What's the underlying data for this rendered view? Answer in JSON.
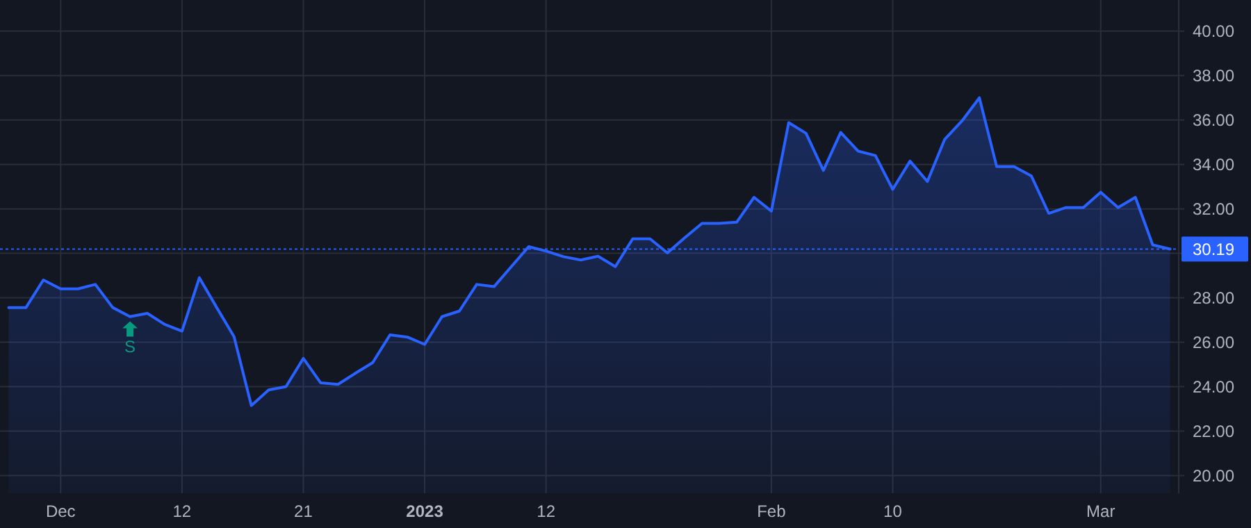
{
  "chart_data": {
    "type": "area",
    "categories": [
      null,
      null,
      null,
      "Dec",
      null,
      null,
      null,
      null,
      null,
      null,
      "12",
      null,
      null,
      null,
      null,
      null,
      null,
      "21",
      null,
      null,
      null,
      null,
      null,
      null,
      "2023",
      null,
      null,
      null,
      null,
      null,
      null,
      "12",
      null,
      null,
      null,
      null,
      null,
      null,
      null,
      null,
      null,
      null,
      null,
      null,
      "Feb",
      null,
      null,
      null,
      null,
      null,
      null,
      "10",
      null,
      null,
      null,
      null,
      null,
      null,
      null,
      null,
      null,
      null,
      null,
      "Mar",
      null,
      null,
      null,
      null
    ],
    "series": [
      {
        "color": "#2962ff",
        "values": [
          27.56,
          27.56,
          28.8,
          28.4,
          28.4,
          28.6,
          27.56,
          27.15,
          27.3,
          26.8,
          26.5,
          28.9,
          27.56,
          26.25,
          23.15,
          23.85,
          24.0,
          25.27,
          24.17,
          24.1,
          24.6,
          25.08,
          26.33,
          26.23,
          25.9,
          27.15,
          27.4,
          28.6,
          28.5,
          29.4,
          30.3,
          30.1,
          29.85,
          29.7,
          29.87,
          29.4,
          30.65,
          30.65,
          30.02,
          30.7,
          31.35,
          31.35,
          31.4,
          32.52,
          31.9,
          35.88,
          35.4,
          33.73,
          35.44,
          34.6,
          34.4,
          32.88,
          34.15,
          33.23,
          35.13,
          35.96,
          37.0,
          33.9,
          33.9,
          33.48,
          31.8,
          32.06,
          32.06,
          32.75,
          32.06,
          32.52,
          30.38,
          30.19
        ]
      },
      {
        "type": "scatter",
        "color": "#089981",
        "marker": "triangle",
        "values": [
          null,
          null,
          null,
          null,
          null,
          null,
          null,
          26.56,
          null,
          null,
          null,
          null,
          null,
          null,
          null,
          null,
          null,
          null,
          null,
          null,
          null,
          null,
          null,
          null,
          null,
          null,
          null,
          null,
          null,
          null,
          null,
          null,
          null,
          null,
          null,
          null,
          null,
          null,
          null,
          null,
          null,
          null,
          null,
          null,
          null,
          null,
          null,
          null,
          null,
          null,
          null,
          null,
          null,
          null,
          null,
          null,
          null,
          null,
          null,
          null,
          null,
          null,
          null,
          null,
          null,
          null,
          null,
          null
        ]
      }
    ],
    "annotations": [
      "S"
    ],
    "ylim": [
      19.2,
      41.4
    ],
    "yticks": [
      {
        "value": 20,
        "label": "20.00"
      },
      {
        "value": 22,
        "label": "22.00"
      },
      {
        "value": 24,
        "label": "24.00"
      },
      {
        "value": 26,
        "label": "26.00"
      },
      {
        "value": 28,
        "label": "28.00"
      },
      {
        "value": 30,
        "label": null
      },
      {
        "value": 32,
        "label": "32.00"
      },
      {
        "value": 34,
        "label": "34.00"
      },
      {
        "value": 36,
        "label": "36.00"
      },
      {
        "value": 38,
        "label": "38.00"
      },
      {
        "value": 40,
        "label": "40.00"
      }
    ],
    "ref_lines": [
      {
        "axis": "y",
        "value": 30.19,
        "label": "30.19",
        "color": "#2962ff",
        "line_style": "dotted"
      }
    ],
    "grid": true
  }
}
